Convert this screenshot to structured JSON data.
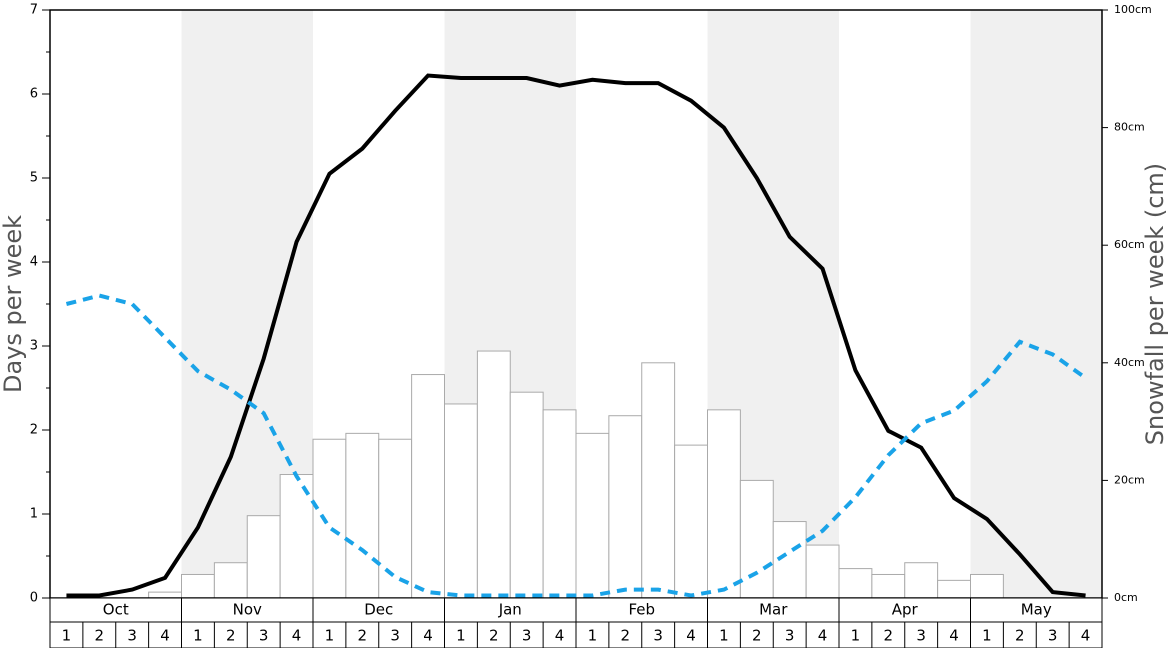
{
  "chart_data": {
    "type": "bar-line",
    "y_label": "Days per week",
    "y2_label": "Snowfall per week (cm)",
    "months": [
      "Oct",
      "Nov",
      "Dec",
      "Jan",
      "Feb",
      "Mar",
      "Apr",
      "May"
    ],
    "categories": [
      "1",
      "2",
      "3",
      "4",
      "1",
      "2",
      "3",
      "4",
      "1",
      "2",
      "3",
      "4",
      "1",
      "2",
      "3",
      "4",
      "1",
      "2",
      "3",
      "4",
      "1",
      "2",
      "3",
      "4",
      "1",
      "2",
      "3",
      "4",
      "1",
      "2",
      "3",
      "4"
    ],
    "ylim": [
      0,
      7
    ],
    "yticks": [
      0,
      1,
      2,
      3,
      4,
      5,
      6,
      7
    ],
    "y2lim": [
      0,
      100
    ],
    "y2ticks": [
      {
        "value": 0,
        "label": "0cm"
      },
      {
        "value": 20,
        "label": "20cm"
      },
      {
        "value": 40,
        "label": "40cm"
      },
      {
        "value": 60,
        "label": "60cm"
      },
      {
        "value": 80,
        "label": "80cm"
      },
      {
        "value": 100,
        "label": "100cm"
      }
    ],
    "series": [
      {
        "kind": "bar",
        "axis": "y2",
        "color": "#ffffff",
        "edge": "#aaaaaa",
        "values": [
          0,
          0,
          0,
          1,
          4,
          6,
          14,
          21,
          27,
          28,
          27,
          38,
          33,
          42,
          35,
          32,
          28,
          31,
          40,
          26,
          32,
          20,
          13,
          9,
          5,
          4,
          6,
          3,
          4,
          0,
          0,
          0
        ]
      },
      {
        "kind": "line",
        "color": "#000000",
        "dashed": false,
        "values": [
          0.03,
          0.03,
          0.1,
          0.24,
          0.84,
          1.68,
          2.85,
          4.24,
          5.05,
          5.35,
          5.8,
          6.22,
          6.19,
          6.19,
          6.19,
          6.1,
          6.17,
          6.13,
          6.13,
          5.92,
          5.6,
          5.0,
          4.3,
          3.92,
          2.71,
          1.99,
          1.79,
          1.19,
          0.94,
          0.52,
          0.07,
          0.03
        ]
      },
      {
        "kind": "line",
        "color": "#1aa3e8",
        "dashed": true,
        "values": [
          3.5,
          3.6,
          3.5,
          3.1,
          2.7,
          2.48,
          2.2,
          1.45,
          0.84,
          0.57,
          0.25,
          0.07,
          0.03,
          0.03,
          0.03,
          0.03,
          0.03,
          0.1,
          0.1,
          0.03,
          0.1,
          0.3,
          0.55,
          0.8,
          1.2,
          1.7,
          2.08,
          2.23,
          2.58,
          3.05,
          2.9,
          2.62
        ]
      }
    ]
  }
}
